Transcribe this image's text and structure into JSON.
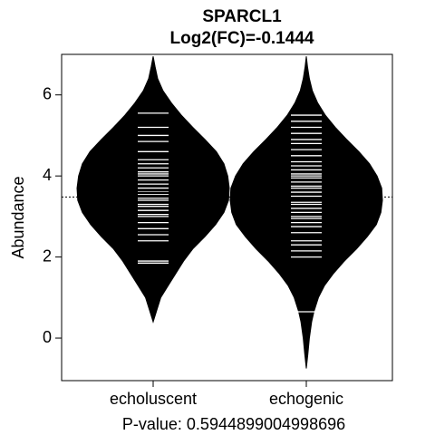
{
  "chart_data": {
    "type": "beanplot",
    "title": "SPARCL1",
    "subtitle": "Log2(FC)=-0.1444",
    "xlabel": "P-value: 0.5944899004998696",
    "ylabel": "Abundance",
    "categories": [
      "echoluscent",
      "echogenic"
    ],
    "ylim": [
      -1.05,
      7.0
    ],
    "yticks": [
      0,
      2,
      4,
      6
    ],
    "overall_mean": 3.48,
    "grid": false,
    "legend": "none",
    "series": [
      {
        "category": "echoluscent",
        "mean": 3.58,
        "density": [
          [
            0.4,
            0.0
          ],
          [
            0.7,
            0.05
          ],
          [
            1.0,
            0.1
          ],
          [
            1.3,
            0.2
          ],
          [
            1.6,
            0.3
          ],
          [
            1.9,
            0.4
          ],
          [
            2.2,
            0.52
          ],
          [
            2.5,
            0.68
          ],
          [
            2.8,
            0.82
          ],
          [
            3.1,
            0.93
          ],
          [
            3.4,
            0.99
          ],
          [
            3.7,
            1.0
          ],
          [
            4.0,
            0.98
          ],
          [
            4.3,
            0.93
          ],
          [
            4.6,
            0.83
          ],
          [
            4.9,
            0.68
          ],
          [
            5.2,
            0.52
          ],
          [
            5.5,
            0.37
          ],
          [
            5.8,
            0.24
          ],
          [
            6.1,
            0.13
          ],
          [
            6.4,
            0.06
          ],
          [
            6.7,
            0.025
          ],
          [
            6.95,
            0.0
          ]
        ],
        "points": [
          1.85,
          1.9,
          2.4,
          2.55,
          2.7,
          2.85,
          3.0,
          3.05,
          3.15,
          3.25,
          3.3,
          3.4,
          3.45,
          3.55,
          3.6,
          3.7,
          3.8,
          3.9,
          4.0,
          4.05,
          4.1,
          4.2,
          4.3,
          4.4,
          4.6,
          4.85,
          5.0,
          5.2,
          5.55
        ]
      },
      {
        "category": "echogenic",
        "mean": 3.45,
        "density": [
          [
            -0.75,
            0.0
          ],
          [
            -0.4,
            0.02
          ],
          [
            0.0,
            0.04
          ],
          [
            0.4,
            0.07
          ],
          [
            0.65,
            0.1
          ],
          [
            1.0,
            0.16
          ],
          [
            1.3,
            0.24
          ],
          [
            1.6,
            0.36
          ],
          [
            1.9,
            0.5
          ],
          [
            2.2,
            0.66
          ],
          [
            2.5,
            0.8
          ],
          [
            2.8,
            0.92
          ],
          [
            3.1,
            0.98
          ],
          [
            3.4,
            1.0
          ],
          [
            3.7,
            0.99
          ],
          [
            4.0,
            0.93
          ],
          [
            4.3,
            0.83
          ],
          [
            4.6,
            0.69
          ],
          [
            4.9,
            0.53
          ],
          [
            5.2,
            0.38
          ],
          [
            5.5,
            0.25
          ],
          [
            5.8,
            0.15
          ],
          [
            6.1,
            0.08
          ],
          [
            6.4,
            0.04
          ],
          [
            6.7,
            0.015
          ],
          [
            6.95,
            0.0
          ]
        ],
        "points": [
          0.65,
          2.0,
          2.15,
          2.3,
          2.4,
          2.6,
          2.75,
          2.85,
          2.95,
          3.0,
          3.1,
          3.2,
          3.3,
          3.35,
          3.45,
          3.5,
          3.6,
          3.7,
          3.75,
          3.85,
          3.95,
          4.0,
          4.05,
          4.15,
          4.25,
          4.35,
          4.5,
          4.65,
          4.8,
          4.9,
          5.05,
          5.2,
          5.35,
          5.5
        ]
      }
    ]
  }
}
